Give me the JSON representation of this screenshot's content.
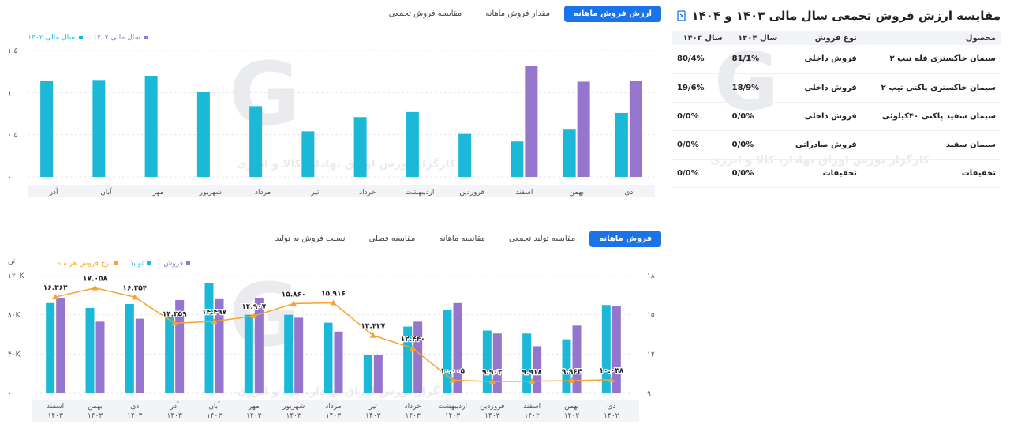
{
  "top_card": {
    "title": "مقایسه ارزش فروش تجمعی سال مالی ۱۴۰۳ و ۱۴۰۴",
    "tabs": [
      "ارزش فروش ماهانه",
      "مقدار فروش ماهانه",
      "مقایسه فروش تجمعی"
    ],
    "active_tab": 0,
    "table": {
      "headers": [
        "محصول",
        "نوع فروش",
        "سال ۱۴۰۴",
        "سال ۱۴۰۳"
      ],
      "rows": [
        [
          "سیمان خاکستری فله تیپ ۲",
          "فروش داخلی",
          "81/1%",
          "80/4%"
        ],
        [
          "سیمان خاکستری پاکتی تیپ ۲",
          "فروش داخلی",
          "18/9%",
          "19/6%"
        ],
        [
          "سیمان سفید پاکتی ۴۰کیلوئی",
          "فروش داخلی",
          "0/0%",
          "0/0%"
        ],
        [
          "سیمان سفید",
          "فروش صادراتی",
          "0/0%",
          "0/0%"
        ],
        [
          "تخفیفات",
          "تخفیفات",
          "0/0%",
          "0/0%"
        ]
      ]
    }
  },
  "bottom_card": {
    "tabs": [
      "فروش ماهانه",
      "مقایسه تولید تجمعی",
      "مقایسه ماهانه",
      "مقایسه فصلی",
      "نسبت فروش به تولید"
    ],
    "active_tab": 0,
    "unit_label": "تن"
  },
  "watermark": {
    "text": "کارگزار بورس اوراق بهادار، کالا و انرژی"
  },
  "colors": {
    "teal": "#1cb8d8",
    "purple": "#9575cd",
    "orange": "#f5a431",
    "active_tab": "#1a73e8"
  },
  "chart_data": [
    {
      "type": "bar",
      "categories": [
        "دی",
        "بهمن",
        "اسفند",
        "فروردین",
        "اردیبهشت",
        "خرداد",
        "تیر",
        "مرداد",
        "شهریور",
        "مهر",
        "آبان",
        "آذر"
      ],
      "series": [
        {
          "name": "سال مالی ۱۴۰۳",
          "color": "#1cb8d8",
          "values": [
            0.76,
            0.57,
            0.42,
            0.51,
            0.77,
            0.71,
            0.54,
            0.84,
            1.01,
            1.2,
            1.15,
            1.14
          ]
        },
        {
          "name": "سال مالی ۱۴۰۴",
          "color": "#9575cd",
          "values": [
            1.14,
            1.13,
            1.32,
            null,
            null,
            null,
            null,
            null,
            null,
            null,
            null,
            null
          ]
        }
      ],
      "yticks": [
        "0",
        "0.5",
        "1",
        "1.5"
      ],
      "ylim": [
        0,
        1.5
      ],
      "legend": "top-left"
    },
    {
      "type": "bar",
      "categories": [
        "دی ۱۴۰۲",
        "بهمن ۱۴۰۲",
        "اسفند ۱۴۰۲",
        "فروردین ۱۴۰۳",
        "اردیبهشت ۱۴۰۳",
        "خرداد ۱۴۰۳",
        "تیر ۱۴۰۳",
        "مرداد ۱۴۰۳",
        "شهریور ۱۴۰۳",
        "مهر ۱۴۰۳",
        "آبان ۱۴۰۳",
        "آذر ۱۴۰۳",
        "دی ۱۴۰۳",
        "بهمن ۱۴۰۳",
        "اسفند ۱۴۰۳"
      ],
      "series": [
        {
          "name": "فروش",
          "type": "bar",
          "color": "#9575cd",
          "values": [
            89000,
            69000,
            48000,
            61000,
            92000,
            73000,
            39000,
            63000,
            77000,
            97000,
            96000,
            95000,
            76000,
            73000,
            97000
          ]
        },
        {
          "name": "تولید",
          "type": "bar",
          "color": "#1cb8d8",
          "values": [
            90000,
            55000,
            61000,
            64000,
            85000,
            68000,
            39000,
            72000,
            80000,
            80000,
            112000,
            78000,
            91000,
            87000,
            92000
          ]
        },
        {
          "name": "نرخ فروش هر ماه",
          "type": "line",
          "color": "#f5a431",
          "values": [
            10.038,
            9.964,
            9.918,
            9.902,
            10.005,
            12.44,
            13.427,
            15.916,
            15.86,
            14.907,
            14.497,
            14.359,
            16.354,
            17.058,
            16.362
          ],
          "labels": [
            "۱۰.۰۳۸",
            "۹.۹۶۴",
            "۹.۹۱۸",
            "۹.۹۰۲",
            "۱۰.۰۰۵",
            "۱۲.۴۴۰",
            "۱۳.۴۲۷",
            "۱۵.۹۱۶",
            "۱۵.۸۶۰",
            "۱۴.۹۰۷",
            "۱۴.۴۹۷",
            "۱۴.۳۵۹",
            "۱۶.۳۵۴",
            "۱۷.۰۵۸",
            "۱۶.۳۶۲"
          ]
        }
      ],
      "y_left_ticks": [
        "0",
        "40K",
        "80K",
        "120K"
      ],
      "y_left_lim": [
        0,
        120000
      ],
      "y_right_ticks": [
        "9",
        "12",
        "15",
        "18"
      ],
      "y_right_lim": [
        9,
        18
      ],
      "legend": "top-left"
    }
  ]
}
